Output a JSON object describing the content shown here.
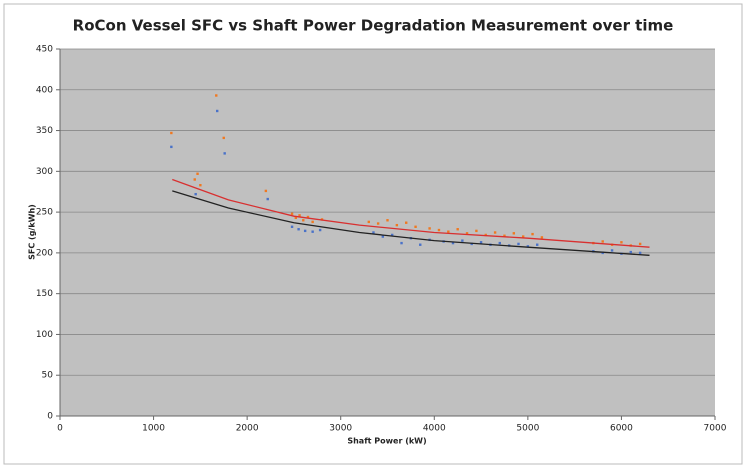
{
  "chart_data": {
    "type": "scatter",
    "title": "RoCon Vessel SFC vs Shaft Power Degradation Measurement over time",
    "x_label": "Shaft Power (kW)",
    "y_label": "SFC (g/kWh)",
    "xlim": [
      0,
      7000
    ],
    "ylim": [
      0,
      450
    ],
    "xticks": [
      0,
      1000,
      2000,
      3000,
      4000,
      5000,
      6000,
      7000
    ],
    "yticks": [
      0,
      50,
      100,
      150,
      200,
      250,
      300,
      350,
      400,
      450
    ],
    "grid": true,
    "series": [
      {
        "color": "#f07820",
        "x": [
          1190,
          1440,
          1470,
          1500,
          1670,
          1750,
          2200,
          2480,
          2520,
          2560,
          2600,
          2650,
          2700,
          2800,
          3300,
          3400,
          3500,
          3600,
          3700,
          3800,
          3950,
          4050,
          4150,
          4250,
          4350,
          4450,
          4550,
          4650,
          4750,
          4850,
          4950,
          5050,
          5150,
          5700,
          5800,
          5900,
          6000,
          6100,
          6200
        ],
        "values": [
          347,
          290,
          297,
          283,
          393,
          341,
          276,
          248,
          243,
          246,
          240,
          244,
          238,
          241,
          238,
          236,
          240,
          234,
          237,
          232,
          230,
          228,
          226,
          229,
          224,
          227,
          222,
          225,
          221,
          224,
          220,
          223,
          219,
          212,
          214,
          210,
          213,
          209,
          211
        ]
      },
      {
        "color": "#4a72c8",
        "x": [
          1190,
          1450,
          1680,
          1760,
          2220,
          2480,
          2550,
          2620,
          2700,
          2780,
          3350,
          3450,
          3550,
          3650,
          3750,
          3850,
          3950,
          4100,
          4200,
          4300,
          4400,
          4500,
          4600,
          4700,
          4800,
          4900,
          5000,
          5100,
          5700,
          5800,
          5900,
          6000,
          6100,
          6200
        ],
        "values": [
          330,
          272,
          374,
          322,
          266,
          232,
          229,
          227,
          226,
          228,
          225,
          220,
          222,
          212,
          218,
          210,
          216,
          214,
          212,
          215,
          211,
          213,
          210,
          212,
          209,
          211,
          208,
          210,
          202,
          200,
          203,
          199,
          201,
          200
        ]
      },
      {
        "type": "line",
        "color": "#d83030",
        "x": [
          1200,
          1800,
          2500,
          3200,
          4000,
          5000,
          6300
        ],
        "values": [
          290,
          265,
          245,
          234,
          225,
          218,
          207
        ]
      },
      {
        "type": "line",
        "color": "#222222",
        "x": [
          1200,
          1800,
          2500,
          3200,
          4000,
          5000,
          6300
        ],
        "values": [
          276,
          255,
          237,
          225,
          215,
          207,
          197
        ]
      }
    ]
  }
}
